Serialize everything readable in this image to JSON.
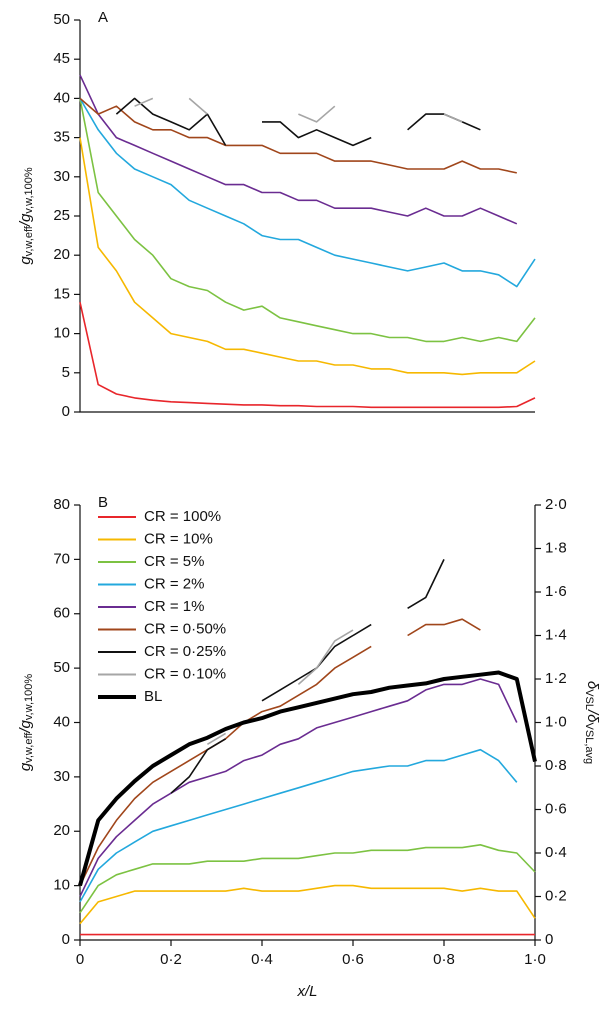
{
  "chart_data": [
    {
      "type": "line",
      "panel_label": "A",
      "ylabel_parts": [
        "g",
        "v,w,eff",
        "/g",
        "v,w,100%"
      ],
      "x": [
        0,
        0.04,
        0.08,
        0.12,
        0.16,
        0.2,
        0.24,
        0.28,
        0.32,
        0.36,
        0.4,
        0.44,
        0.48,
        0.52,
        0.56,
        0.6,
        0.64,
        0.68,
        0.72,
        0.76,
        0.8,
        0.84,
        0.88,
        0.92,
        0.96,
        1.0
      ],
      "xlim": [
        0,
        1
      ],
      "ylim": [
        0,
        50
      ],
      "yticks": [
        0,
        5,
        10,
        15,
        20,
        25,
        30,
        35,
        40,
        45,
        50
      ],
      "series": [
        {
          "name": "CR = 100%",
          "color": "#e8262b",
          "values": [
            14,
            3.5,
            2.3,
            1.8,
            1.5,
            1.3,
            1.2,
            1.1,
            1.0,
            0.9,
            0.9,
            0.8,
            0.8,
            0.7,
            0.7,
            0.7,
            0.6,
            0.6,
            0.6,
            0.6,
            0.6,
            0.6,
            0.6,
            0.6,
            0.7,
            1.8
          ]
        },
        {
          "name": "CR = 10%",
          "color": "#f6b800",
          "values": [
            35,
            21,
            18,
            14,
            12,
            10,
            9.5,
            9,
            8,
            8,
            7.5,
            7,
            6.5,
            6.5,
            6,
            6,
            5.5,
            5.5,
            5,
            5,
            5,
            4.8,
            5,
            5,
            5,
            6.5
          ]
        },
        {
          "name": "CR = 5%",
          "color": "#7cc242",
          "values": [
            40,
            28,
            25,
            22,
            20,
            17,
            16,
            15.5,
            14,
            13,
            13.5,
            12,
            11.5,
            11,
            10.5,
            10,
            10,
            9.5,
            9.5,
            9,
            9,
            9.5,
            9,
            9.5,
            9,
            12
          ]
        },
        {
          "name": "CR = 2%",
          "color": "#23a8dd",
          "values": [
            40,
            36,
            33,
            31,
            30,
            29,
            27,
            26,
            25,
            24,
            22.5,
            22,
            22,
            21,
            20,
            19.5,
            19,
            18.5,
            18,
            18.5,
            19,
            18,
            18,
            17.5,
            16,
            19.5
          ]
        },
        {
          "name": "CR = 1%",
          "color": "#6a2c91",
          "values": [
            43,
            38,
            35,
            34,
            33,
            32,
            31,
            30,
            29,
            29,
            28,
            28,
            27,
            27,
            26,
            26,
            26,
            25.5,
            25,
            26,
            25,
            25,
            26,
            25,
            24,
            null
          ]
        },
        {
          "name": "CR = 0·50%",
          "color": "#a0461b",
          "values": [
            40,
            38,
            39,
            37,
            36,
            36,
            35,
            35,
            34,
            34,
            34,
            33,
            33,
            33,
            32,
            32,
            32,
            31.5,
            31,
            31,
            31,
            32,
            31,
            31,
            30.5,
            null
          ]
        },
        {
          "name": "CR = 0·25%",
          "color": "#111111",
          "values": [
            null,
            null,
            38,
            40,
            38,
            37,
            36,
            38,
            34,
            null,
            37,
            37,
            35,
            36,
            35,
            34,
            35,
            null,
            36,
            38,
            38,
            37,
            36,
            null,
            null,
            null
          ]
        },
        {
          "name": "CR = 0·10%",
          "color": "#a6a6a6",
          "values": [
            null,
            40,
            null,
            39,
            40,
            null,
            40,
            38,
            null,
            null,
            null,
            null,
            38,
            37,
            39,
            null,
            null,
            null,
            null,
            null,
            38,
            37,
            null,
            null,
            null,
            null
          ]
        }
      ]
    },
    {
      "type": "line",
      "panel_label": "B",
      "ylabel_parts": [
        "g",
        "v,w,eff",
        "/g",
        "v,w,100%"
      ],
      "y2label_parts": [
        "δ",
        "VSL",
        "/δ",
        "VSL,avg"
      ],
      "xlabel": "x/L",
      "x": [
        0,
        0.04,
        0.08,
        0.12,
        0.16,
        0.2,
        0.24,
        0.28,
        0.32,
        0.36,
        0.4,
        0.44,
        0.48,
        0.52,
        0.56,
        0.6,
        0.64,
        0.68,
        0.72,
        0.76,
        0.8,
        0.84,
        0.88,
        0.92,
        0.96,
        1.0
      ],
      "xlim": [
        0,
        1
      ],
      "xticks": [
        0,
        {
          "value": 0.2,
          "label": "0·2"
        },
        {
          "value": 0.4,
          "label": "0·4"
        },
        {
          "value": 0.6,
          "label": "0·6"
        },
        {
          "value": 0.8,
          "label": "0·8"
        },
        {
          "value": 1.0,
          "label": "1·0"
        }
      ],
      "ylim": [
        0,
        80
      ],
      "yticks": [
        0,
        10,
        20,
        30,
        40,
        50,
        60,
        70,
        80
      ],
      "y2lim": [
        0,
        2
      ],
      "y2ticks": [
        0,
        {
          "value": 0.2,
          "label": "0·2"
        },
        {
          "value": 0.4,
          "label": "0·4"
        },
        {
          "value": 0.6,
          "label": "0·6"
        },
        {
          "value": 0.8,
          "label": "0·8"
        },
        {
          "value": 1.0,
          "label": "1·0"
        },
        {
          "value": 1.2,
          "label": "1·2"
        },
        {
          "value": 1.4,
          "label": "1·4"
        },
        {
          "value": 1.6,
          "label": "1·6"
        },
        {
          "value": 1.8,
          "label": "1·8"
        },
        {
          "value": 2.0,
          "label": "2·0"
        }
      ],
      "legend": "upper left",
      "series": [
        {
          "name": "CR = 100%",
          "color": "#e8262b",
          "values": [
            1,
            1,
            1,
            1,
            1,
            1,
            1,
            1,
            1,
            1,
            1,
            1,
            1,
            1,
            1,
            1,
            1,
            1,
            1,
            1,
            1,
            1,
            1,
            1,
            1,
            1
          ]
        },
        {
          "name": "CR = 10%",
          "color": "#f6b800",
          "values": [
            3,
            7,
            8,
            9,
            9,
            9,
            9,
            9,
            9,
            9.5,
            9,
            9,
            9,
            9.5,
            10,
            10,
            9.5,
            9.5,
            9.5,
            9.5,
            9.5,
            9,
            9.5,
            9,
            9,
            4
          ]
        },
        {
          "name": "CR = 5%",
          "color": "#7cc242",
          "values": [
            5,
            10,
            12,
            13,
            14,
            14,
            14,
            14.5,
            14.5,
            14.5,
            15,
            15,
            15,
            15.5,
            16,
            16,
            16.5,
            16.5,
            16.5,
            17,
            17,
            17,
            17.5,
            16.5,
            16,
            12.5
          ]
        },
        {
          "name": "CR = 2%",
          "color": "#23a8dd",
          "values": [
            7,
            13,
            16,
            18,
            20,
            21,
            22,
            23,
            24,
            25,
            26,
            27,
            28,
            29,
            30,
            31,
            31.5,
            32,
            32,
            33,
            33,
            34,
            35,
            33,
            29,
            null
          ]
        },
        {
          "name": "CR = 1%",
          "color": "#6a2c91",
          "values": [
            8,
            15,
            19,
            22,
            25,
            27,
            29,
            30,
            31,
            33,
            34,
            36,
            37,
            39,
            40,
            41,
            42,
            43,
            44,
            46,
            47,
            47,
            48,
            47,
            40,
            null
          ]
        },
        {
          "name": "CR = 0·50%",
          "color": "#a0461b",
          "values": [
            10,
            17,
            22,
            26,
            29,
            31,
            33,
            35,
            37,
            40,
            42,
            43,
            45,
            47,
            50,
            52,
            54,
            null,
            56,
            58,
            58,
            59,
            57,
            null,
            48,
            null
          ]
        },
        {
          "name": "CR = 0·25%",
          "color": "#111111",
          "values": [
            null,
            null,
            null,
            null,
            null,
            27,
            30,
            35,
            37,
            null,
            44,
            46,
            48,
            50,
            54,
            56,
            58,
            null,
            61,
            63,
            70,
            null,
            64,
            null,
            null,
            null
          ]
        },
        {
          "name": "CR = 0·10%",
          "color": "#a6a6a6",
          "values": [
            null,
            null,
            null,
            null,
            null,
            26,
            null,
            36,
            38,
            null,
            null,
            null,
            47,
            50,
            55,
            57,
            null,
            null,
            null,
            null,
            62,
            null,
            68,
            null,
            null,
            null
          ]
        },
        {
          "name": "BL",
          "color": "#000000",
          "axis": "y2",
          "width": 4,
          "values": [
            0.25,
            0.55,
            0.65,
            0.73,
            0.8,
            0.85,
            0.9,
            0.93,
            0.97,
            1.0,
            1.02,
            1.05,
            1.07,
            1.09,
            1.11,
            1.13,
            1.14,
            1.16,
            1.17,
            1.18,
            1.2,
            1.21,
            1.22,
            1.23,
            1.2,
            0.82
          ]
        }
      ]
    }
  ]
}
